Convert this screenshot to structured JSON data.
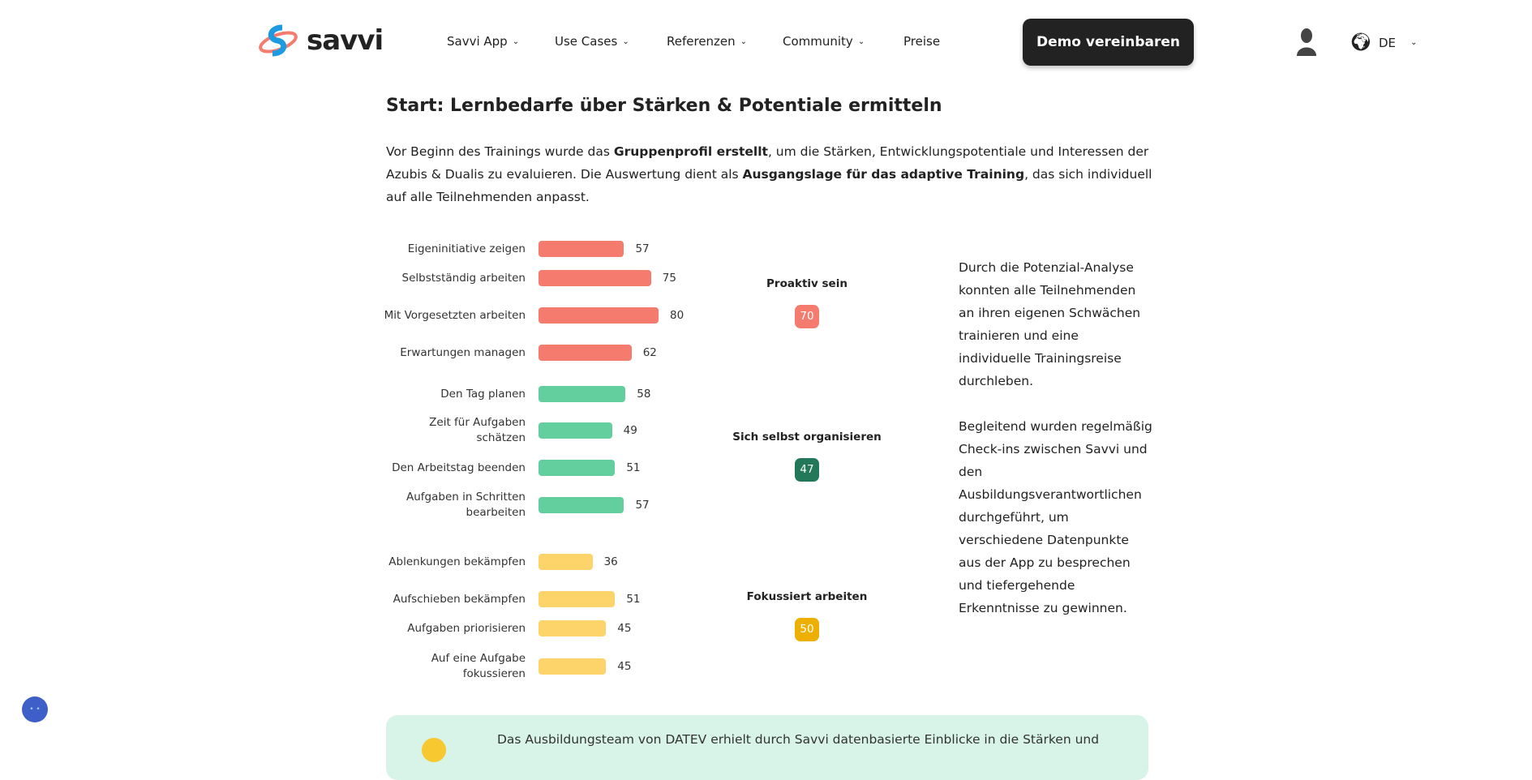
{
  "header": {
    "logo_text": "savvi",
    "nav": [
      {
        "label": "Savvi App",
        "dropdown": true
      },
      {
        "label": "Use Cases",
        "dropdown": true
      },
      {
        "label": "Referenzen",
        "dropdown": true
      },
      {
        "label": "Community",
        "dropdown": true
      },
      {
        "label": "Preise",
        "dropdown": false
      }
    ],
    "cta": "Demo vereinbaren",
    "language": "DE"
  },
  "section": {
    "title": "Start: Lernbedarfe über Stärken & Potentiale ermitteln",
    "intro": [
      {
        "t": "Vor Beginn des Trainings wurde das "
      },
      {
        "t": "Gruppenprofil erstellt",
        "b": true
      },
      {
        "t": ", um die Stärken, Entwicklungspotentiale und Interessen der Azubis & Dualis zu evaluieren. Die Auswertung dient als "
      },
      {
        "t": "Ausgangslage für das adaptive Training",
        "b": true
      },
      {
        "t": ", das sich individuell auf alle Teilnehmenden anpasst."
      }
    ]
  },
  "chart_data": {
    "type": "bar",
    "orientation": "horizontal",
    "groups": [
      {
        "name": "Proaktiv sein",
        "score": "70",
        "color": "#f47b6e",
        "badge_color": "#f47b6e",
        "items": [
          {
            "label": "Eigeninitiative zeigen",
            "value": 57
          },
          {
            "label": "Selbstständig arbeiten",
            "value": 75
          },
          {
            "label": "Mit Vorgesetzten arbeiten",
            "value": 80
          },
          {
            "label": "Erwartungen managen",
            "value": 62
          }
        ]
      },
      {
        "name": "Sich selbst organisieren",
        "score": "47",
        "color": "#63cf9e",
        "badge_color": "#23785a",
        "items": [
          {
            "label": "Den Tag planen",
            "value": 58
          },
          {
            "label": "Zeit für Aufgaben schätzen",
            "value": 49
          },
          {
            "label": "Den Arbeitstag beenden",
            "value": 51
          },
          {
            "label": "Aufgaben in Schritten bearbeiten",
            "value": 57
          }
        ]
      },
      {
        "name": "Fokussiert arbeiten",
        "score": "50",
        "color": "#fdd46a",
        "badge_color": "#eeb000",
        "items": [
          {
            "label": "Ablenkungen bekämpfen",
            "value": 36
          },
          {
            "label": "Aufschieben bekämpfen",
            "value": 51
          },
          {
            "label": "Aufgaben priorisieren",
            "value": 45
          },
          {
            "label": "Auf eine Aufgabe fokussieren",
            "value": 45
          }
        ]
      }
    ]
  },
  "side": [
    "Durch die Potenzial-Analyse konnten alle Teilnehmenden an ihren eigenen Schwächen trainieren und eine individuelle Trainingsreise durchleben.",
    "Begleitend wurden regelmäßig Check-ins zwischen Savvi und den Ausbildungsverantwortlichen durchgeführt, um verschiedene Datenpunkte aus der App zu besprechen und tiefergehende Erkenntnisse zu gewinnen."
  ],
  "callout": "Das Ausbildungsteam von DATEV erhielt durch Savvi datenbasierte Einblicke in die Stärken und"
}
